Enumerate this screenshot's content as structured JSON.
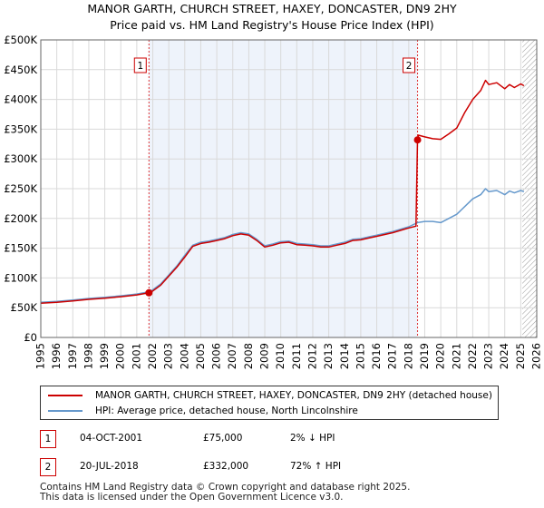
{
  "title_line1": "MANOR GARTH, CHURCH STREET, HAXEY, DONCASTER, DN9 2HY",
  "title_line2": "Price paid vs. HM Land Registry's House Price Index (HPI)",
  "colors": {
    "price": "#cc0000",
    "hpi": "#6699cc",
    "plot_bg": "#eef3fb",
    "grid": "#d9d9d9"
  },
  "chart_data": {
    "type": "line",
    "title": "MANOR GARTH, CHURCH STREET, HAXEY, DONCASTER, DN9 2HY — Price paid vs. HM Land Registry's House Price Index (HPI)",
    "xlabel": "",
    "ylabel": "",
    "xlim": [
      1995.0,
      2026.0
    ],
    "ylim": [
      0,
      500000
    ],
    "x_ticks": [
      1995,
      1996,
      1997,
      1998,
      1999,
      2000,
      2001,
      2002,
      2003,
      2004,
      2005,
      2006,
      2007,
      2008,
      2009,
      2010,
      2011,
      2012,
      2013,
      2014,
      2015,
      2016,
      2017,
      2018,
      2019,
      2020,
      2021,
      2022,
      2023,
      2024,
      2025,
      2026
    ],
    "y_ticks": [
      {
        "value": 0,
        "label": "£0"
      },
      {
        "value": 50000,
        "label": "£50K"
      },
      {
        "value": 100000,
        "label": "£100K"
      },
      {
        "value": 150000,
        "label": "£150K"
      },
      {
        "value": 200000,
        "label": "£200K"
      },
      {
        "value": 250000,
        "label": "£250K"
      },
      {
        "value": 300000,
        "label": "£300K"
      },
      {
        "value": 350000,
        "label": "£350K"
      },
      {
        "value": 400000,
        "label": "£400K"
      },
      {
        "value": 450000,
        "label": "£450K"
      },
      {
        "value": 500000,
        "label": "£500K"
      }
    ],
    "grid": true,
    "shaded_regions": [
      {
        "from": 2001.76,
        "to": 2018.55
      }
    ],
    "hatched_region": {
      "from": 2025.1,
      "to": 2026.0
    },
    "series": [
      {
        "name": "MANOR GARTH, CHURCH STREET, HAXEY, DONCASTER, DN9 2HY (detached house)",
        "color": "#cc0000",
        "points": [
          [
            1995.0,
            57500
          ],
          [
            1996.0,
            59000
          ],
          [
            1997.0,
            61500
          ],
          [
            1998.0,
            64000
          ],
          [
            1999.0,
            66000
          ],
          [
            2000.0,
            68500
          ],
          [
            2001.0,
            71500
          ],
          [
            2001.76,
            75000
          ],
          [
            2002.0,
            78000
          ],
          [
            2002.5,
            88000
          ],
          [
            2003.0,
            103000
          ],
          [
            2003.5,
            118000
          ],
          [
            2004.0,
            135000
          ],
          [
            2004.5,
            153000
          ],
          [
            2005.0,
            158000
          ],
          [
            2005.5,
            160000
          ],
          [
            2006.0,
            163000
          ],
          [
            2006.5,
            166000
          ],
          [
            2007.0,
            171000
          ],
          [
            2007.5,
            174000
          ],
          [
            2008.0,
            172000
          ],
          [
            2008.5,
            163000
          ],
          [
            2009.0,
            152000
          ],
          [
            2009.5,
            155000
          ],
          [
            2010.0,
            159000
          ],
          [
            2010.5,
            160000
          ],
          [
            2011.0,
            156000
          ],
          [
            2011.5,
            155000
          ],
          [
            2012.0,
            154000
          ],
          [
            2012.5,
            152000
          ],
          [
            2013.0,
            152000
          ],
          [
            2013.5,
            155000
          ],
          [
            2014.0,
            158000
          ],
          [
            2014.5,
            163000
          ],
          [
            2015.0,
            164000
          ],
          [
            2015.5,
            167000
          ],
          [
            2016.0,
            170000
          ],
          [
            2016.5,
            173000
          ],
          [
            2017.0,
            176000
          ],
          [
            2017.5,
            180000
          ],
          [
            2018.0,
            184000
          ],
          [
            2018.45,
            187000
          ],
          [
            2018.55,
            332000
          ],
          [
            2018.6,
            340000
          ],
          [
            2019.0,
            337000
          ],
          [
            2019.5,
            334000
          ],
          [
            2020.0,
            333000
          ],
          [
            2020.5,
            342000
          ],
          [
            2021.0,
            352000
          ],
          [
            2021.5,
            378000
          ],
          [
            2022.0,
            400000
          ],
          [
            2022.5,
            415000
          ],
          [
            2022.8,
            432000
          ],
          [
            2023.0,
            425000
          ],
          [
            2023.5,
            428000
          ],
          [
            2024.0,
            418000
          ],
          [
            2024.3,
            425000
          ],
          [
            2024.6,
            420000
          ],
          [
            2025.0,
            426000
          ],
          [
            2025.2,
            423000
          ]
        ]
      },
      {
        "name": "HPI: Average price, detached house, North Lincolnshire",
        "color": "#6699cc",
        "points": [
          [
            1995.0,
            59000
          ],
          [
            1996.0,
            60500
          ],
          [
            1997.0,
            63000
          ],
          [
            1998.0,
            65500
          ],
          [
            1999.0,
            67500
          ],
          [
            2000.0,
            70000
          ],
          [
            2001.0,
            73000
          ],
          [
            2001.76,
            76500
          ],
          [
            2002.0,
            80000
          ],
          [
            2002.5,
            90000
          ],
          [
            2003.0,
            105000
          ],
          [
            2003.5,
            120000
          ],
          [
            2004.0,
            138000
          ],
          [
            2004.5,
            155000
          ],
          [
            2005.0,
            160000
          ],
          [
            2005.5,
            162000
          ],
          [
            2006.0,
            165000
          ],
          [
            2006.5,
            168000
          ],
          [
            2007.0,
            173000
          ],
          [
            2007.5,
            176000
          ],
          [
            2008.0,
            174000
          ],
          [
            2008.5,
            165000
          ],
          [
            2009.0,
            154000
          ],
          [
            2009.5,
            157000
          ],
          [
            2010.0,
            161000
          ],
          [
            2010.5,
            162000
          ],
          [
            2011.0,
            158000
          ],
          [
            2011.5,
            157000
          ],
          [
            2012.0,
            156000
          ],
          [
            2012.5,
            154000
          ],
          [
            2013.0,
            154000
          ],
          [
            2013.5,
            157000
          ],
          [
            2014.0,
            160000
          ],
          [
            2014.5,
            165000
          ],
          [
            2015.0,
            166000
          ],
          [
            2015.5,
            169000
          ],
          [
            2016.0,
            172000
          ],
          [
            2016.5,
            175000
          ],
          [
            2017.0,
            178000
          ],
          [
            2017.5,
            182000
          ],
          [
            2018.0,
            186000
          ],
          [
            2018.55,
            193000
          ],
          [
            2019.0,
            195000
          ],
          [
            2019.5,
            195000
          ],
          [
            2020.0,
            193000
          ],
          [
            2020.5,
            200000
          ],
          [
            2021.0,
            207000
          ],
          [
            2021.5,
            220000
          ],
          [
            2022.0,
            233000
          ],
          [
            2022.5,
            240000
          ],
          [
            2022.8,
            250000
          ],
          [
            2023.0,
            245000
          ],
          [
            2023.5,
            247000
          ],
          [
            2024.0,
            240000
          ],
          [
            2024.3,
            246000
          ],
          [
            2024.6,
            243000
          ],
          [
            2025.0,
            247000
          ],
          [
            2025.2,
            245000
          ]
        ]
      }
    ],
    "markers": [
      {
        "id": "1",
        "x": 2001.76,
        "y": 75000
      },
      {
        "id": "2",
        "x": 2018.55,
        "y": 332000
      }
    ]
  },
  "legend": {
    "price_label": "MANOR GARTH, CHURCH STREET, HAXEY, DONCASTER, DN9 2HY (detached house)",
    "hpi_label": "HPI: Average price, detached house, North Lincolnshire"
  },
  "transactions": [
    {
      "num": "1",
      "date": "04-OCT-2001",
      "price": "£75,000",
      "hpi": "2% ↓ HPI"
    },
    {
      "num": "2",
      "date": "20-JUL-2018",
      "price": "£332,000",
      "hpi": "72% ↑ HPI"
    }
  ],
  "footer": {
    "line1": "Contains HM Land Registry data © Crown copyright and database right 2025.",
    "line2": "This data is licensed under the Open Government Licence v3.0."
  }
}
